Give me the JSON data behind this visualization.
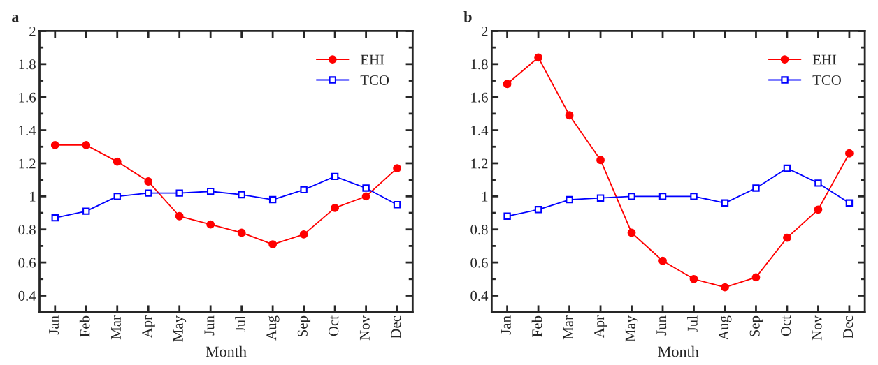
{
  "chart_data": [
    {
      "type": "line",
      "title": "a",
      "xlabel": "Month",
      "categories": [
        "Jan",
        "Feb",
        "Mar",
        "Apr",
        "May",
        "Jun",
        "Jul",
        "Aug",
        "Sep",
        "Oct",
        "Nov",
        "Dec"
      ],
      "ylim": [
        0.3,
        2
      ],
      "yticks": [
        {
          "value": 0.4,
          "label": "0.4"
        },
        {
          "value": 0.6,
          "label": "0.6"
        },
        {
          "value": 0.8,
          "label": "0.8"
        },
        1,
        {
          "value": 1.2,
          "label": "1.2"
        },
        {
          "value": 1.4,
          "label": "1.4"
        },
        {
          "value": 1.6,
          "label": "1.6"
        },
        {
          "value": 1.8,
          "label": "1.8"
        },
        2
      ],
      "grid": false,
      "legend": "top right",
      "series": [
        {
          "name": "EHI",
          "color": "#ff0000",
          "marker": "circle",
          "values": [
            1.31,
            1.31,
            1.21,
            1.09,
            0.88,
            0.83,
            0.78,
            0.71,
            0.77,
            0.93,
            1.0,
            1.17
          ]
        },
        {
          "name": "TCO",
          "color": "#0000ff",
          "marker": "square",
          "values": [
            0.87,
            0.91,
            1.0,
            1.02,
            1.02,
            1.03,
            1.01,
            0.98,
            1.04,
            1.12,
            1.05,
            0.95
          ]
        }
      ]
    },
    {
      "type": "line",
      "title": "b",
      "xlabel": "Month",
      "categories": [
        "Jan",
        "Feb",
        "Mar",
        "Apr",
        "May",
        "Jun",
        "Jul",
        "Aug",
        "Sep",
        "Oct",
        "Nov",
        "Dec"
      ],
      "ylim": [
        0.3,
        2
      ],
      "yticks": [
        {
          "value": 0.4,
          "label": "0.4"
        },
        {
          "value": 0.6,
          "label": "0.6"
        },
        {
          "value": 0.8,
          "label": "0.8"
        },
        1,
        {
          "value": 1.2,
          "label": "1.2"
        },
        {
          "value": 1.4,
          "label": "1.4"
        },
        {
          "value": 1.6,
          "label": "1.6"
        },
        {
          "value": 1.8,
          "label": "1.8"
        },
        2
      ],
      "grid": false,
      "legend": "top right",
      "series": [
        {
          "name": "EHI",
          "color": "#ff0000",
          "marker": "circle",
          "values": [
            1.68,
            1.84,
            1.49,
            1.22,
            0.78,
            0.61,
            0.5,
            0.45,
            0.51,
            0.75,
            0.92,
            1.26
          ]
        },
        {
          "name": "TCO",
          "color": "#0000ff",
          "marker": "square",
          "values": [
            0.88,
            0.92,
            0.98,
            0.99,
            1.0,
            1.0,
            1.0,
            0.96,
            1.05,
            1.17,
            1.08,
            0.96
          ]
        }
      ]
    }
  ]
}
